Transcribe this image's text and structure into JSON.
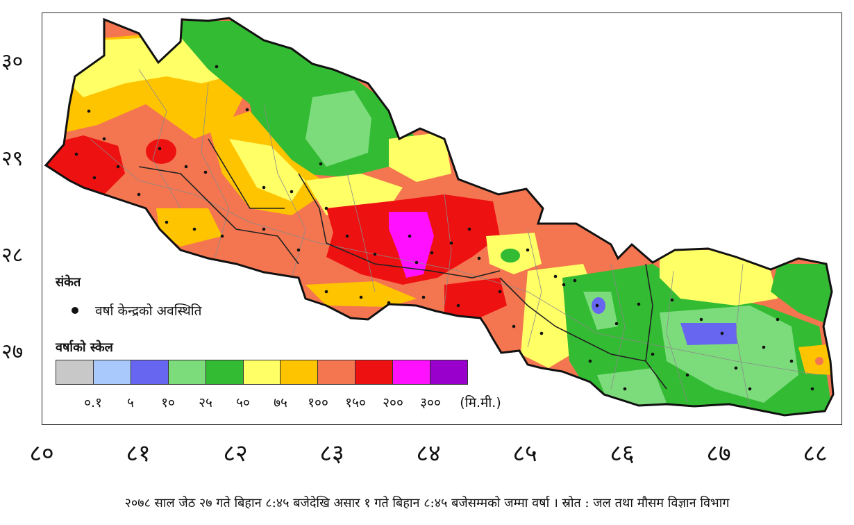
{
  "y_axis_labels": [
    "३०",
    "२९",
    "२८",
    "२७"
  ],
  "x_axis_labels": [
    "८०",
    "८१",
    "८२",
    "८३",
    "८४",
    "८५",
    "८६",
    "८७",
    "८८"
  ],
  "legend": {
    "title": "संकेत",
    "station_label": "वर्षा केन्द्रको अवस्थिति"
  },
  "scale": {
    "title": "वर्षाको स्केल",
    "colors": [
      "#c8c8c8",
      "#a9c8fb",
      "#6666f0",
      "#7cdc7c",
      "#33bb33",
      "#ffff66",
      "#ffc400",
      "#f47650",
      "#ee1111",
      "#ff11ff",
      "#9900cc"
    ],
    "labels": [
      "०.१",
      "५",
      "१०",
      "२५",
      "५०",
      "७५",
      "१००",
      "१५०",
      "२००",
      "३००"
    ],
    "unit": "(मि.मी.)"
  },
  "caption": "२०७८ साल जेठ २७ गते बिहान ८:४५ बजेदेखि असार १ गते बिहान ८:४५ बजेसम्मको जम्मा वर्षा । स्रोत : जल तथा मौसम विज्ञान विभाग"
}
